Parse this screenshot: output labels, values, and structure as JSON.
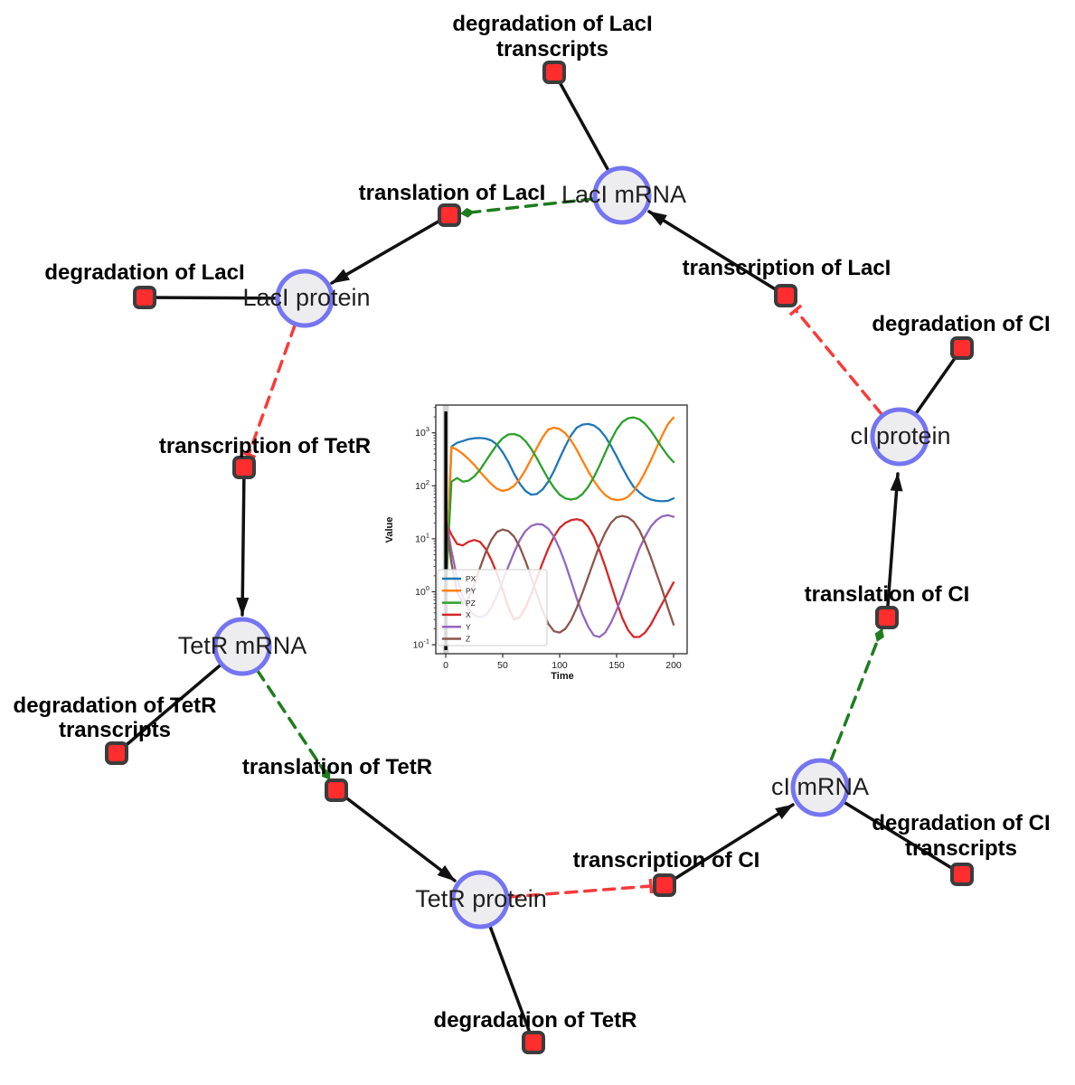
{
  "diagram": {
    "species": [
      {
        "label": "LacI mRNA"
      },
      {
        "label": "LacI protein"
      },
      {
        "label": "cI protein"
      },
      {
        "label": "TetR mRNA"
      },
      {
        "label": "TetR protein"
      },
      {
        "label": "cI mRNA"
      }
    ],
    "reactions": [
      {
        "lines": [
          "degradation of LacI",
          "transcripts"
        ]
      },
      {
        "lines": [
          "translation of LacI"
        ]
      },
      {
        "lines": [
          "degradation of LacI"
        ]
      },
      {
        "lines": [
          "transcription of TetR"
        ]
      },
      {
        "lines": [
          "transcription of LacI"
        ]
      },
      {
        "lines": [
          "degradation of CI"
        ]
      },
      {
        "lines": [
          "translation of CI"
        ]
      },
      {
        "lines": [
          "degradation of TetR",
          "transcripts"
        ]
      },
      {
        "lines": [
          "translation of TetR"
        ]
      },
      {
        "lines": [
          "transcription of CI"
        ]
      },
      {
        "lines": [
          "degradation of TetR"
        ]
      },
      {
        "lines": [
          "degradation of CI",
          "transcripts"
        ]
      }
    ],
    "colors": {
      "species_fill": "#ededf0",
      "species_border": "#7575f2",
      "reaction_fill": "#ff2d2d",
      "reaction_border": "#3c3c3c",
      "edge_black": "#111111",
      "edge_catalysis_green": "#1e7d1e",
      "edge_inhibition_red": "#f93a3a"
    }
  },
  "chart_data": {
    "type": "line",
    "title": "",
    "xlabel": "Time",
    "ylabel": "Value",
    "y_scale": "log",
    "grid": false,
    "legend_position": "lower left",
    "x_ticks": [
      0,
      50,
      100,
      150,
      200
    ],
    "y_ticks_exponents": [
      -1,
      0,
      1,
      2,
      3
    ],
    "xlim": [
      -9,
      212
    ],
    "ylim_log": [
      -1.2,
      3.5
    ],
    "vline_x": 0,
    "x": [
      0,
      5,
      10,
      15,
      20,
      25,
      30,
      35,
      40,
      45,
      50,
      55,
      60,
      65,
      70,
      75,
      80,
      85,
      90,
      95,
      100,
      105,
      110,
      115,
      120,
      125,
      130,
      135,
      140,
      145,
      150,
      155,
      160,
      165,
      170,
      175,
      180,
      185,
      190,
      195,
      200
    ],
    "series": [
      {
        "name": "PX",
        "color": "#1f77b4",
        "values": [
          1,
          550,
          650,
          700,
          760,
          790,
          800,
          780,
          720,
          600,
          430,
          280,
          170,
          110,
          80,
          68,
          70,
          85,
          120,
          190,
          330,
          560,
          900,
          1250,
          1430,
          1470,
          1380,
          1150,
          850,
          570,
          360,
          220,
          140,
          95,
          75,
          62,
          55,
          52,
          51,
          52,
          58
        ]
      },
      {
        "name": "PY",
        "color": "#ff7f0e",
        "values": [
          1,
          540,
          480,
          400,
          320,
          250,
          185,
          140,
          108,
          88,
          80,
          85,
          100,
          135,
          200,
          320,
          520,
          820,
          1150,
          1250,
          1180,
          980,
          720,
          480,
          300,
          190,
          125,
          88,
          67,
          57,
          54,
          55,
          62,
          80,
          115,
          180,
          300,
          520,
          900,
          1450,
          1950
        ]
      },
      {
        "name": "PZ",
        "color": "#2ca02c",
        "values": [
          1,
          120,
          140,
          120,
          125,
          150,
          200,
          290,
          420,
          600,
          790,
          930,
          950,
          870,
          700,
          500,
          330,
          210,
          135,
          92,
          68,
          58,
          55,
          58,
          70,
          95,
          145,
          240,
          420,
          720,
          1150,
          1600,
          1880,
          1950,
          1800,
          1480,
          1100,
          760,
          520,
          370,
          280
        ]
      },
      {
        "name": "X",
        "color": "#d62728",
        "values": [
          20,
          12,
          8,
          7.5,
          8.8,
          9.5,
          8.8,
          6.5,
          4,
          2.2,
          1.1,
          0.5,
          0.3,
          0.33,
          0.5,
          0.9,
          1.8,
          3.5,
          6.5,
          11,
          16,
          20,
          22.5,
          23.5,
          22,
          17,
          11,
          6,
          3,
          1.4,
          0.65,
          0.32,
          0.19,
          0.14,
          0.14,
          0.17,
          0.24,
          0.38,
          0.6,
          0.95,
          1.5
        ]
      },
      {
        "name": "Y",
        "color": "#9467bd",
        "values": [
          25,
          6,
          1.8,
          0.8,
          0.48,
          0.36,
          0.33,
          0.36,
          0.5,
          0.85,
          1.6,
          3,
          5.5,
          9.5,
          14,
          17.5,
          19,
          18.5,
          15.5,
          11,
          6.5,
          3.4,
          1.6,
          0.75,
          0.38,
          0.22,
          0.15,
          0.14,
          0.17,
          0.26,
          0.45,
          0.85,
          1.7,
          3.4,
          6.5,
          11,
          17,
          22.5,
          26.5,
          28,
          26
        ]
      },
      {
        "name": "Z",
        "color": "#8c564b",
        "values": [
          25,
          3.5,
          1,
          0.6,
          0.75,
          1.4,
          2.8,
          5.5,
          9.5,
          13.5,
          15,
          14,
          11,
          7,
          3.8,
          1.9,
          0.9,
          0.45,
          0.25,
          0.18,
          0.17,
          0.2,
          0.29,
          0.5,
          0.95,
          1.9,
          3.8,
          7.5,
          13,
          20,
          25.5,
          27,
          25.5,
          21,
          14.5,
          8.5,
          4.5,
          2.2,
          1.1,
          0.5,
          0.24
        ]
      }
    ]
  }
}
